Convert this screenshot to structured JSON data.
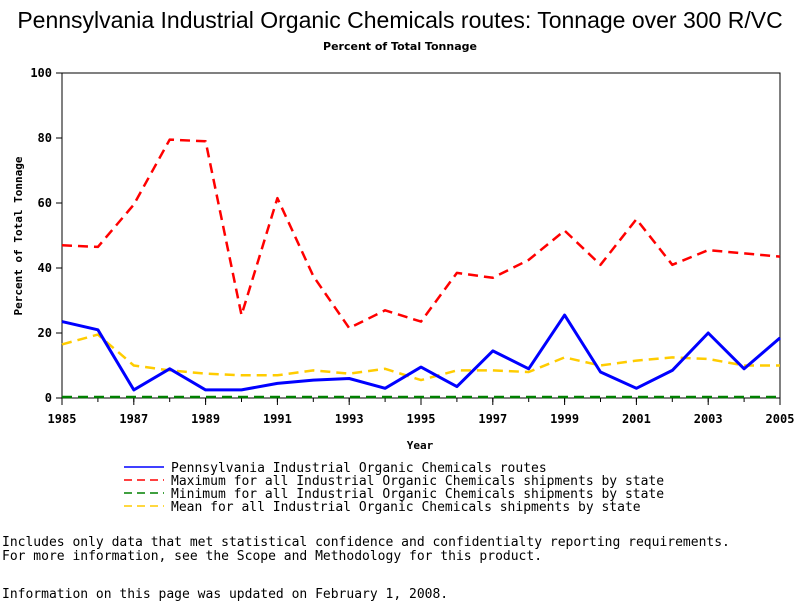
{
  "chart_data": {
    "type": "line",
    "title": "Pennsylvania Industrial Organic Chemicals routes: Tonnage over 300 R/VC",
    "subtitle": "Percent of Total Tonnage",
    "xlabel": "Year",
    "ylabel": "Percent of Total Tonnage",
    "xlim": [
      1985,
      2005
    ],
    "ylim": [
      0,
      100
    ],
    "xticks": [
      "1985",
      "1987",
      "1989",
      "1991",
      "1993",
      "1995",
      "1997",
      "1999",
      "2001",
      "2003",
      "2005"
    ],
    "yticks": [
      "0",
      "20",
      "40",
      "60",
      "80",
      "100"
    ],
    "grid": false,
    "legend_position": "bottom",
    "x": [
      1985,
      1986,
      1987,
      1988,
      1989,
      1990,
      1991,
      1992,
      1993,
      1994,
      1995,
      1996,
      1997,
      1998,
      1999,
      2000,
      2001,
      2002,
      2003,
      2004,
      2005
    ],
    "series": [
      {
        "name": "Pennsylvania Industrial Organic Chemicals routes",
        "color": "#0000ff",
        "style": "solid",
        "values": [
          23.5,
          21.0,
          2.5,
          9.0,
          2.5,
          2.5,
          4.5,
          5.5,
          6.0,
          3.0,
          9.5,
          3.5,
          14.5,
          9.0,
          25.5,
          8.0,
          3.0,
          8.5,
          20.0,
          9.0,
          18.5
        ]
      },
      {
        "name": "Maximum for all Industrial Organic Chemicals shipments by state",
        "color": "#ff0000",
        "style": "dashed",
        "values": [
          47.0,
          46.5,
          59.5,
          79.5,
          79.0,
          25.5,
          61.5,
          37.5,
          21.5,
          27.0,
          23.5,
          38.5,
          37.0,
          42.5,
          51.5,
          41.0,
          55.0,
          41.0,
          45.5,
          44.5,
          43.5
        ]
      },
      {
        "name": "Minimum for all Industrial Organic Chemicals shipments by state",
        "color": "#008000",
        "style": "dashed",
        "values": [
          0.3,
          0.3,
          0.3,
          0.3,
          0.3,
          0.3,
          0.3,
          0.3,
          0.3,
          0.3,
          0.3,
          0.3,
          0.3,
          0.3,
          0.3,
          0.3,
          0.3,
          0.3,
          0.3,
          0.3,
          0.3
        ]
      },
      {
        "name": "Mean for all Industrial Organic Chemicals shipments by state",
        "color": "#ffcc00",
        "style": "dashed",
        "values": [
          16.5,
          19.5,
          10.0,
          8.5,
          7.5,
          7.0,
          7.0,
          8.5,
          7.5,
          9.0,
          5.5,
          8.5,
          8.5,
          8.0,
          12.5,
          10.0,
          11.5,
          12.5,
          12.0,
          10.0,
          10.0
        ]
      }
    ]
  },
  "notes": {
    "line1": "Includes only data that met statistical confidence and confidentialty reporting requirements.",
    "line2": "For more information, see the Scope and Methodology for this product.",
    "updated": "Information on this page was updated on February 1, 2008."
  }
}
